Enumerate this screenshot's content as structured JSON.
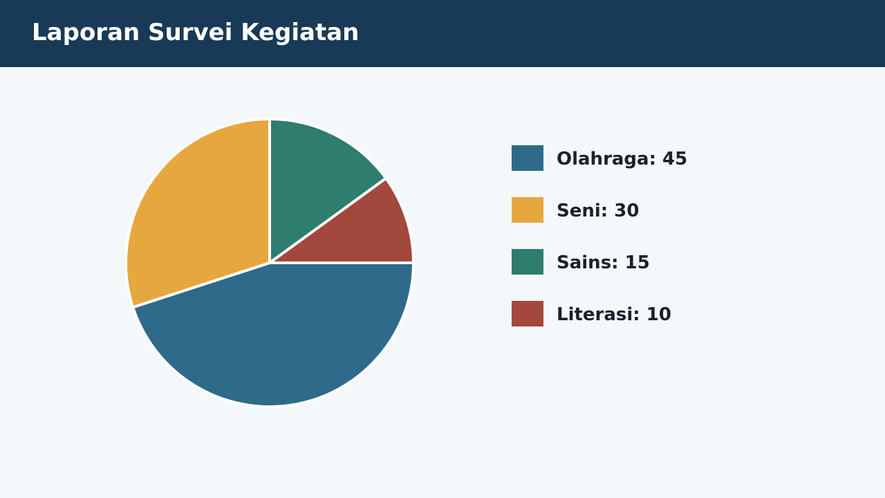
{
  "header": {
    "title": "Laporan Survei Kegiatan"
  },
  "colors": {
    "header_bg": "#183a57",
    "page_bg": "#f4f8fb",
    "slice_border": "#ffffff"
  },
  "chart_data": {
    "type": "pie",
    "categories": [
      "Olahraga",
      "Seni",
      "Sains",
      "Literasi"
    ],
    "values": [
      45,
      30,
      15,
      10
    ],
    "colors": [
      "#2e6a8a",
      "#e7a73f",
      "#2e7d6e",
      "#a3483c"
    ],
    "legend_labels": [
      "Olahraga: 45",
      "Seni: 30",
      "Sains: 15",
      "Literasi: 10"
    ],
    "legend_position": "right",
    "start_angle": "3 o'clock",
    "direction": "clockwise"
  }
}
